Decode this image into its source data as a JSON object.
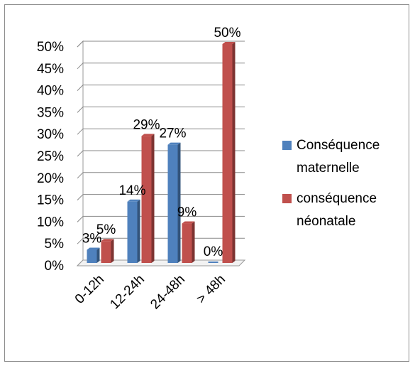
{
  "chart_data": {
    "type": "bar",
    "categories": [
      "0-12h",
      "12-24h",
      "24-48h",
      "> 48h"
    ],
    "series": [
      {
        "name": "Conséquence maternelle",
        "values": [
          3,
          14,
          27,
          0
        ],
        "labels": [
          "3%",
          "14%",
          "27%",
          "0%"
        ],
        "color": "#4f81bd"
      },
      {
        "name": "conséquence néonatale",
        "values": [
          5,
          29,
          9,
          50
        ],
        "labels": [
          "5%",
          "29%",
          "9%",
          "50%"
        ],
        "color": "#c0504d"
      }
    ],
    "yticks": [
      "0%",
      "5%",
      "10%",
      "15%",
      "20%",
      "25%",
      "30%",
      "35%",
      "40%",
      "45%",
      "50%"
    ],
    "ylim": [
      0,
      50
    ],
    "grid": true,
    "legend_position": "right",
    "legend": [
      {
        "line1": "Conséquence",
        "line2": "maternelle"
      },
      {
        "line1": "conséquence",
        "line2": "néonatale"
      }
    ]
  }
}
